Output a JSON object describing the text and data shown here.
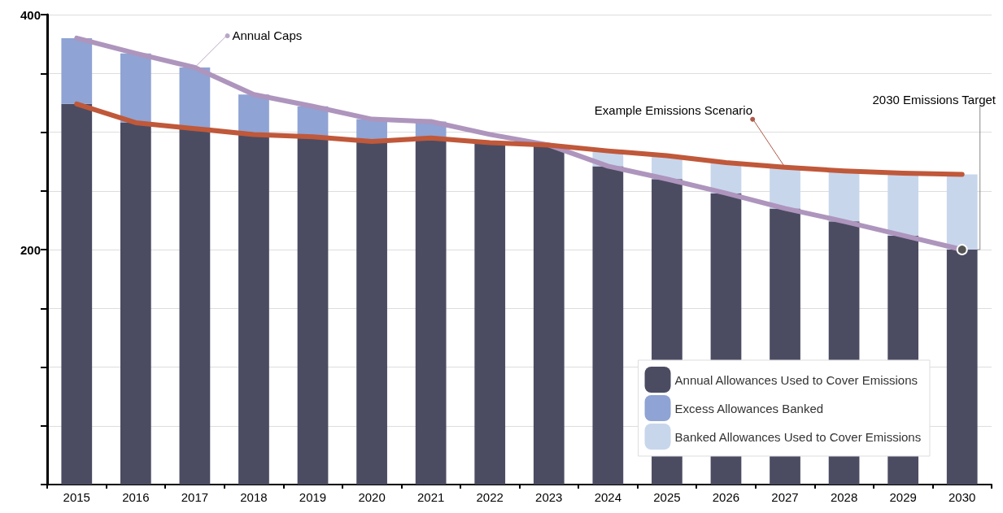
{
  "chart_data": {
    "type": "bar",
    "stacked": true,
    "categories": [
      "2015",
      "2016",
      "2017",
      "2018",
      "2019",
      "2020",
      "2021",
      "2022",
      "2023",
      "2024",
      "2025",
      "2026",
      "2027",
      "2028",
      "2029",
      "2030"
    ],
    "series": [
      {
        "name": "Annual Allowances Used to Cover Emissions",
        "color": "#4b4c62",
        "values": [
          324,
          308,
          303,
          298,
          296,
          292,
          295,
          291,
          289,
          271,
          260,
          248,
          235,
          224,
          212,
          200
        ]
      },
      {
        "name": "Excess Allowances Banked",
        "color": "#8fa3d4",
        "values": [
          56,
          59,
          52,
          34,
          26,
          19,
          14,
          null,
          null,
          null,
          null,
          null,
          null,
          null,
          null,
          null
        ]
      },
      {
        "name": "Banked Allowances Used to Cover Emissions",
        "color": "#c8d6ec",
        "values": [
          null,
          null,
          null,
          null,
          null,
          null,
          null,
          null,
          null,
          13,
          20,
          26,
          35,
          43,
          53,
          64
        ]
      },
      {
        "type": "line",
        "color": "#ae95bd",
        "values": [
          380,
          367,
          355,
          332,
          322,
          311,
          309,
          298,
          289,
          271,
          260,
          248,
          235,
          224,
          212,
          200
        ]
      },
      {
        "type": "line",
        "color": "#c0583a",
        "values": [
          324,
          308,
          303,
          298,
          296,
          292,
          295,
          291,
          289,
          284,
          280,
          274,
          270,
          267,
          265,
          264
        ]
      }
    ],
    "ylim": [
      0,
      400
    ],
    "yticks": [
      {
        "value": 0,
        "label": null
      },
      {
        "value": 50,
        "label": null
      },
      {
        "value": 100,
        "label": null
      },
      {
        "value": 150,
        "label": null
      },
      200,
      {
        "value": 250,
        "label": null
      },
      {
        "value": 300,
        "label": null
      },
      {
        "value": 350,
        "label": null
      },
      400
    ],
    "grid": "y",
    "legend": "bottom right",
    "marker": "none",
    "line_style": "solid",
    "annotations": [
      {
        "text": "Annual Caps",
        "x": "2017",
        "y": 355
      },
      {
        "text": "Example Emissions Scenario",
        "x": "2027",
        "y": 270
      },
      {
        "text": "2030 Emissions Target",
        "x": "2030",
        "y": 200
      }
    ]
  }
}
